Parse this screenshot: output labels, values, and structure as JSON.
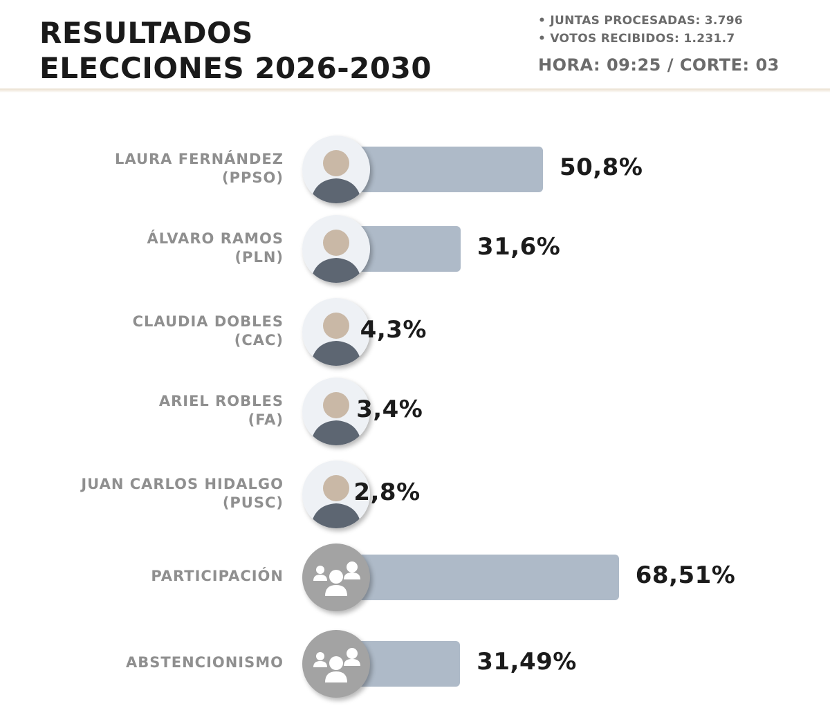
{
  "header": {
    "title_line1": "RESULTADOS",
    "title_line2": "ELECCIONES 2026-2030",
    "juntas": "• JUNTAS PROCESADAS: 3.796",
    "votos": "• VOTOS RECIBIDOS: 1.231.7",
    "hora": "HORA: 09:25 / CORTE: 03"
  },
  "colors": {
    "bar": "#aebac8",
    "label": "#8f8f8f",
    "value": "#1b1b1b",
    "group_icon_bg": "#a3a3a3"
  },
  "chart_data": {
    "type": "bar",
    "orientation": "horizontal",
    "categories": [
      "LAURA FERNÁNDEZ (PPSO)",
      "ÁLVARO RAMOS (PLN)",
      "CLAUDIA DOBLES (CAC)",
      "ARIEL ROBLES (FA)",
      "JUAN CARLOS HIDALGO (PUSC)",
      "PARTICIPACIÓN",
      "ABSTENCIONISMO"
    ],
    "values": [
      50.8,
      31.6,
      4.3,
      3.4,
      2.8,
      68.51,
      31.49
    ],
    "grid": false,
    "legend": "none"
  },
  "rows": [
    {
      "name_line1": "LAURA FERNÁNDEZ",
      "name_line2": "(PPSO)",
      "value": 50.8,
      "value_label": "50,8%",
      "icon": "candidate-photo-icon"
    },
    {
      "name_line1": "ÁLVARO RAMOS",
      "name_line2": "(PLN)",
      "value": 31.6,
      "value_label": "31,6%",
      "icon": "candidate-photo-icon"
    },
    {
      "name_line1": "CLAUDIA DOBLES",
      "name_line2": "(CAC)",
      "value": 4.3,
      "value_label": "4,3%",
      "icon": "candidate-photo-icon"
    },
    {
      "name_line1": "ARIEL ROBLES",
      "name_line2": "(FA)",
      "value": 3.4,
      "value_label": "3,4%",
      "icon": "candidate-photo-icon"
    },
    {
      "name_line1": "JUAN CARLOS HIDALGO",
      "name_line2": "(PUSC)",
      "value": 2.8,
      "value_label": "2,8%",
      "icon": "candidate-photo-icon"
    },
    {
      "name_line1": "PARTICIPACIÓN",
      "name_line2": "",
      "value": 68.51,
      "value_label": "68,51%",
      "icon": "people-group-icon"
    },
    {
      "name_line1": "ABSTENCIONISMO",
      "name_line2": "",
      "value": 31.49,
      "value_label": "31,49%",
      "icon": "people-group-icon"
    }
  ]
}
